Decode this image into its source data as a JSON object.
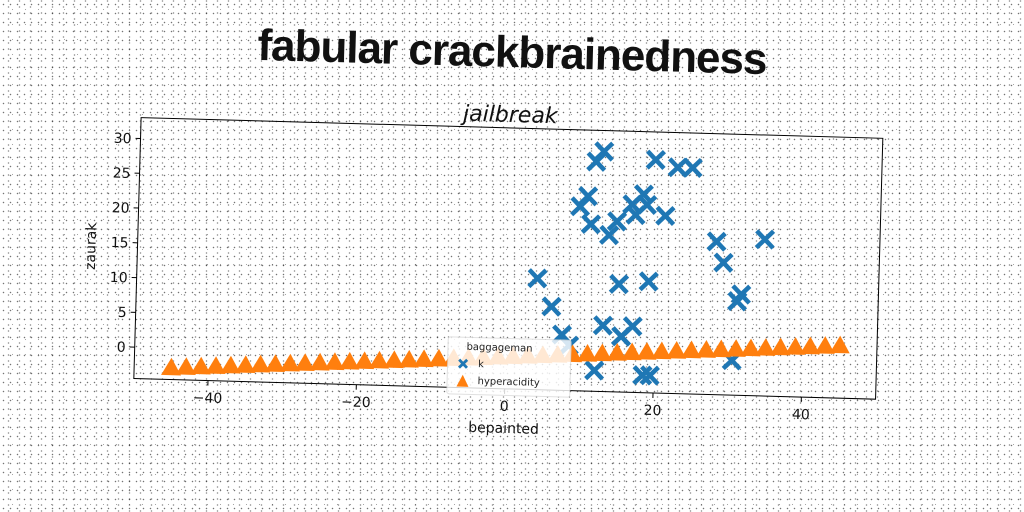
{
  "figure": {
    "suptitle": "fabular crackbrainedness"
  },
  "chart_data": {
    "type": "scatter",
    "title": "jailbreak",
    "xlabel": "bepainted",
    "ylabel": "zaurak",
    "xlim": [
      -50,
      50
    ],
    "ylim": [
      -4.5,
      33
    ],
    "xticks": [
      -40,
      -20,
      0,
      20,
      40
    ],
    "yticks": [
      0,
      5,
      10,
      15,
      20,
      25,
      30
    ],
    "legend": {
      "title": "baggageman",
      "placement": "lower center"
    },
    "series": [
      {
        "name": "k",
        "marker": "x",
        "color": "#1f77b4",
        "x": [
          11.5,
          12.5,
          9.5,
          10.5,
          11,
          13.5,
          14.5,
          15,
          16.5,
          17,
          18,
          18.5,
          19.5,
          21,
          22.5,
          24.5,
          28,
          29,
          31,
          34.5,
          30.5,
          31.5,
          19,
          15.5,
          4,
          6,
          7.5,
          13,
          15.5,
          17,
          8.5,
          18.5,
          12,
          19.5
        ],
        "y": [
          28.5,
          30,
          22,
          23.5,
          19.5,
          18,
          20,
          11,
          22.5,
          21,
          24,
          22.5,
          29,
          21,
          28,
          28,
          17.5,
          14.5,
          9,
          18,
          0.5,
          10,
          11.5,
          3.5,
          11.5,
          7.5,
          3.5,
          5,
          3.5,
          5,
          2,
          -2,
          -1.5,
          -2
        ]
      },
      {
        "name": "hyperacidity",
        "marker": "^",
        "color": "#ff7f0e",
        "x": [
          -45,
          -43,
          -41,
          -39,
          -37,
          -35,
          -33,
          -31,
          -29,
          -27,
          -25,
          -23,
          -21,
          -19,
          -17,
          -15,
          -13,
          -11,
          -9,
          -7,
          -5,
          -3,
          -1,
          1,
          3,
          5,
          7,
          9,
          11,
          13,
          15,
          17,
          19,
          21,
          23,
          25,
          27,
          29,
          31,
          33,
          35,
          37,
          39,
          41,
          43,
          45
        ],
        "y": [
          -2.8,
          -2.67,
          -2.54,
          -2.41,
          -2.28,
          -2.15,
          -2.02,
          -1.89,
          -1.76,
          -1.63,
          -1.5,
          -1.37,
          -1.24,
          -1.11,
          -0.98,
          -0.85,
          -0.72,
          -0.59,
          -0.46,
          -0.33,
          -0.2,
          -0.07,
          0.06,
          0.19,
          0.32,
          0.45,
          0.58,
          0.71,
          0.84,
          0.97,
          1.1,
          1.23,
          1.36,
          1.49,
          1.62,
          1.75,
          1.88,
          2.01,
          2.14,
          2.27,
          2.4,
          2.53,
          2.66,
          2.79,
          2.92,
          3.05
        ]
      }
    ]
  }
}
